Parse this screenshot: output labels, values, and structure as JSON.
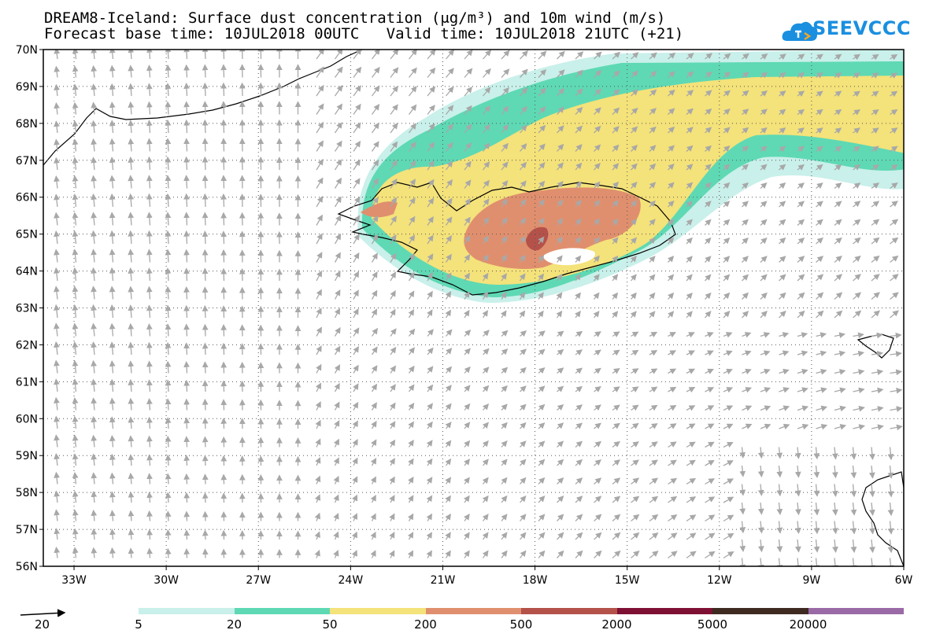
{
  "header": {
    "title_line1": "DREAM8-Iceland: Surface dust concentration (μg/m³) and 10m wind (m/s)",
    "title_line2": "Forecast base time: 10JUL2018 00UTC   Valid time: 10JUL2018 21UTC (+21)"
  },
  "logo": {
    "text": "SEEVCCC",
    "color": "#1a8fe0"
  },
  "map": {
    "lat_labels": [
      "70N",
      "69N",
      "68N",
      "67N",
      "66N",
      "65N",
      "64N",
      "63N",
      "62N",
      "61N",
      "60N",
      "59N",
      "58N",
      "57N",
      "56N"
    ],
    "lon_labels": [
      "33W",
      "30W",
      "27W",
      "24W",
      "21W",
      "18W",
      "15W",
      "12W",
      "9W",
      "6W"
    ],
    "lat_range": [
      56,
      70
    ],
    "lon_range": [
      -34.0,
      -6.0
    ],
    "gridlines": "dotted"
  },
  "legend": {
    "wind_reference": "20",
    "levels": [
      "5",
      "20",
      "50",
      "200",
      "500",
      "2000",
      "5000",
      "20000"
    ],
    "colors": [
      "#c9f0ea",
      "#5ed9b4",
      "#f4e27a",
      "#e08f6e",
      "#b4524a",
      "#7e1034",
      "#3e2a20",
      "#9a6aa6"
    ]
  }
}
